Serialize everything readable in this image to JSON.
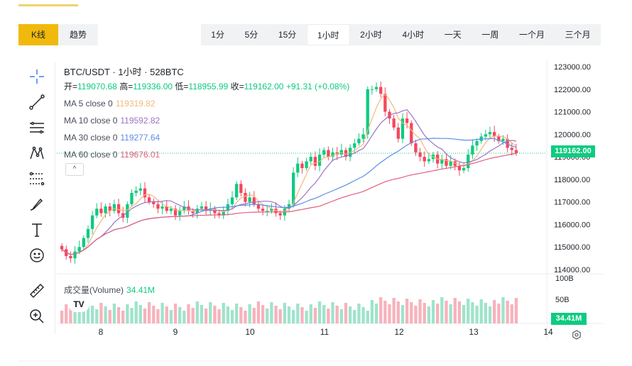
{
  "mode_tabs": [
    {
      "label": "K线",
      "active": true
    },
    {
      "label": "趋势",
      "active": false
    }
  ],
  "intervals": [
    {
      "label": "1分"
    },
    {
      "label": "5分"
    },
    {
      "label": "15分"
    },
    {
      "label": "1小时",
      "active": true
    },
    {
      "label": "2小时"
    },
    {
      "label": "4小时"
    },
    {
      "label": "一天"
    },
    {
      "label": "一周"
    },
    {
      "label": "一个月"
    },
    {
      "label": "三个月"
    }
  ],
  "tools": [
    "crosshair-icon",
    "trend-line-icon",
    "horizontal-lines-icon",
    "pattern-icon",
    "fib-icon",
    "brush-icon",
    "text-icon",
    "emoji-icon",
    "ruler-icon",
    "zoom-in-icon"
  ],
  "legend": {
    "title": "BTC/USDT · 1小时 · 528BTC",
    "open_label": "开=",
    "open": "119070.68",
    "high_label": "高=",
    "high": "119336.00",
    "low_label": "低=",
    "low": "118955.99",
    "close_label": "收=",
    "close": "119162.00",
    "change": "+91.31 (+0.08%)",
    "ma": [
      {
        "label": "MA 5 close 0",
        "value": "119319.82",
        "color": "#f5b77a"
      },
      {
        "label": "MA 10 close 0",
        "value": "119592.82",
        "color": "#9a74c8"
      },
      {
        "label": "MA 30 close 0",
        "value": "119277.64",
        "color": "#5b8ee6"
      },
      {
        "label": "MA 60 close 0",
        "value": "119676.01",
        "color": "#e0607e"
      }
    ],
    "collapse": "^"
  },
  "volume_legend": {
    "label": "成交量(Volume)",
    "value": "34.41M"
  },
  "tv_logo": "TV",
  "price_axis": [
    "123000.00",
    "122000.00",
    "121000.00",
    "120000.00",
    "119000.00",
    "118000.00",
    "117000.00",
    "116000.00",
    "115000.00",
    "114000.00"
  ],
  "volume_axis": [
    "100B",
    "50B"
  ],
  "time_axis": [
    "8",
    "9",
    "10",
    "11",
    "12",
    "13",
    "14"
  ],
  "current_price": "119162.00",
  "current_volume": "34.41M",
  "colors": {
    "up": "#0ecb81",
    "down": "#f6465d",
    "accent": "#f0b90b"
  },
  "chart_data": {
    "type": "candlestick",
    "close_series": [
      114900,
      114600,
      114500,
      114800,
      115000,
      115400,
      115800,
      116400,
      116700,
      116500,
      116800,
      116600,
      116900,
      116500,
      116300,
      116900,
      117400,
      117500,
      117600,
      117200,
      117000,
      116900,
      116700,
      116800,
      116600,
      116700,
      116400,
      116600,
      116800,
      116600,
      116500,
      116700,
      116800,
      116600,
      116700,
      116500,
      116400,
      116600,
      116900,
      117200,
      117800,
      117400,
      117000,
      117200,
      116900,
      116700,
      116600,
      116600,
      116700,
      116500,
      116400,
      116700,
      116900,
      118300,
      118700,
      118500,
      118800,
      119000,
      118600,
      119100,
      119300,
      119000,
      119200,
      119100,
      119300,
      119000,
      119400,
      119600,
      119800,
      120000,
      122000,
      122000,
      122100,
      121800,
      121000,
      120700,
      120300,
      119800,
      120700,
      120500,
      119600,
      119200,
      119000,
      118800,
      118900,
      119100,
      118700,
      118900,
      118600,
      118800,
      118600,
      118400,
      118500,
      119100,
      119500,
      119700,
      119900,
      120000,
      120100,
      119900,
      119700,
      119800,
      119400,
      119300,
      119162
    ]
  }
}
